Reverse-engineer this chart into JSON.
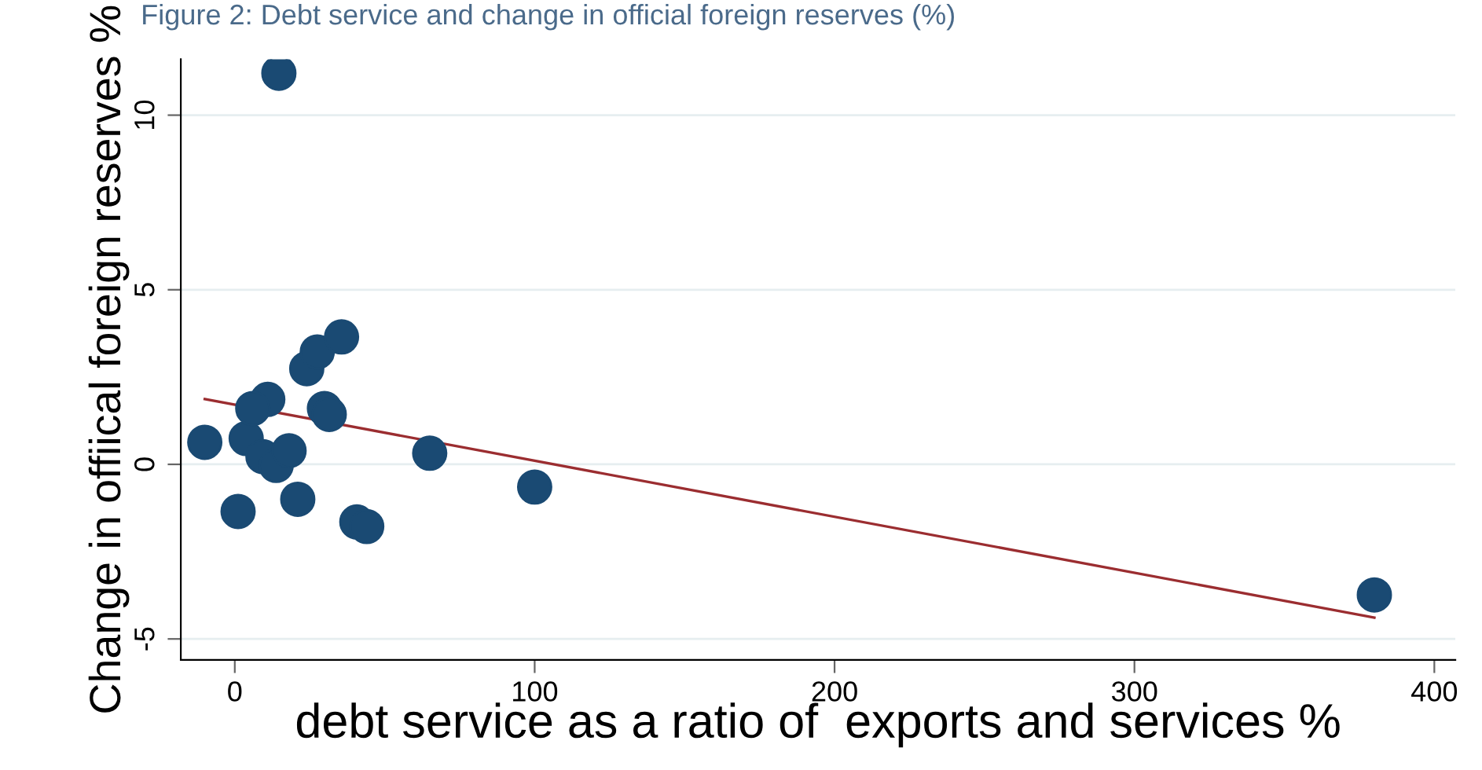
{
  "chart_data": {
    "type": "scatter",
    "title": "Figure 2: Debt service and change in official foreign reserves (%)",
    "xlabel": "debt service as a ratio of  exports and services %",
    "ylabel": "Change in offiical foreign reserves %",
    "xlim": [
      -18,
      407
    ],
    "ylim": [
      -5.6,
      11.6
    ],
    "xticks": [
      0,
      100,
      200,
      300,
      400
    ],
    "yticks": [
      -5,
      0,
      5,
      10
    ],
    "grid": "y",
    "series": [
      {
        "marker": "circle",
        "color": "#1a4a73",
        "x": [
          14.7,
          -10,
          3.8,
          11,
          6,
          9.4,
          13.8,
          18.1,
          1.1,
          21,
          24,
          27.5,
          35.6,
          29.9,
          31.5,
          40.7,
          44,
          65,
          100,
          380
        ],
        "values": [
          11.2,
          0.63,
          0.74,
          1.86,
          1.6,
          0.22,
          -0.03,
          0.39,
          -1.35,
          -1.0,
          2.74,
          3.22,
          3.65,
          1.6,
          1.43,
          -1.65,
          -1.78,
          0.32,
          -0.65,
          -3.74
        ]
      },
      {
        "type": "line",
        "color": "#9b2d30",
        "x": [
          -10,
          380
        ],
        "values": [
          1.87,
          -4.39
        ]
      }
    ]
  }
}
